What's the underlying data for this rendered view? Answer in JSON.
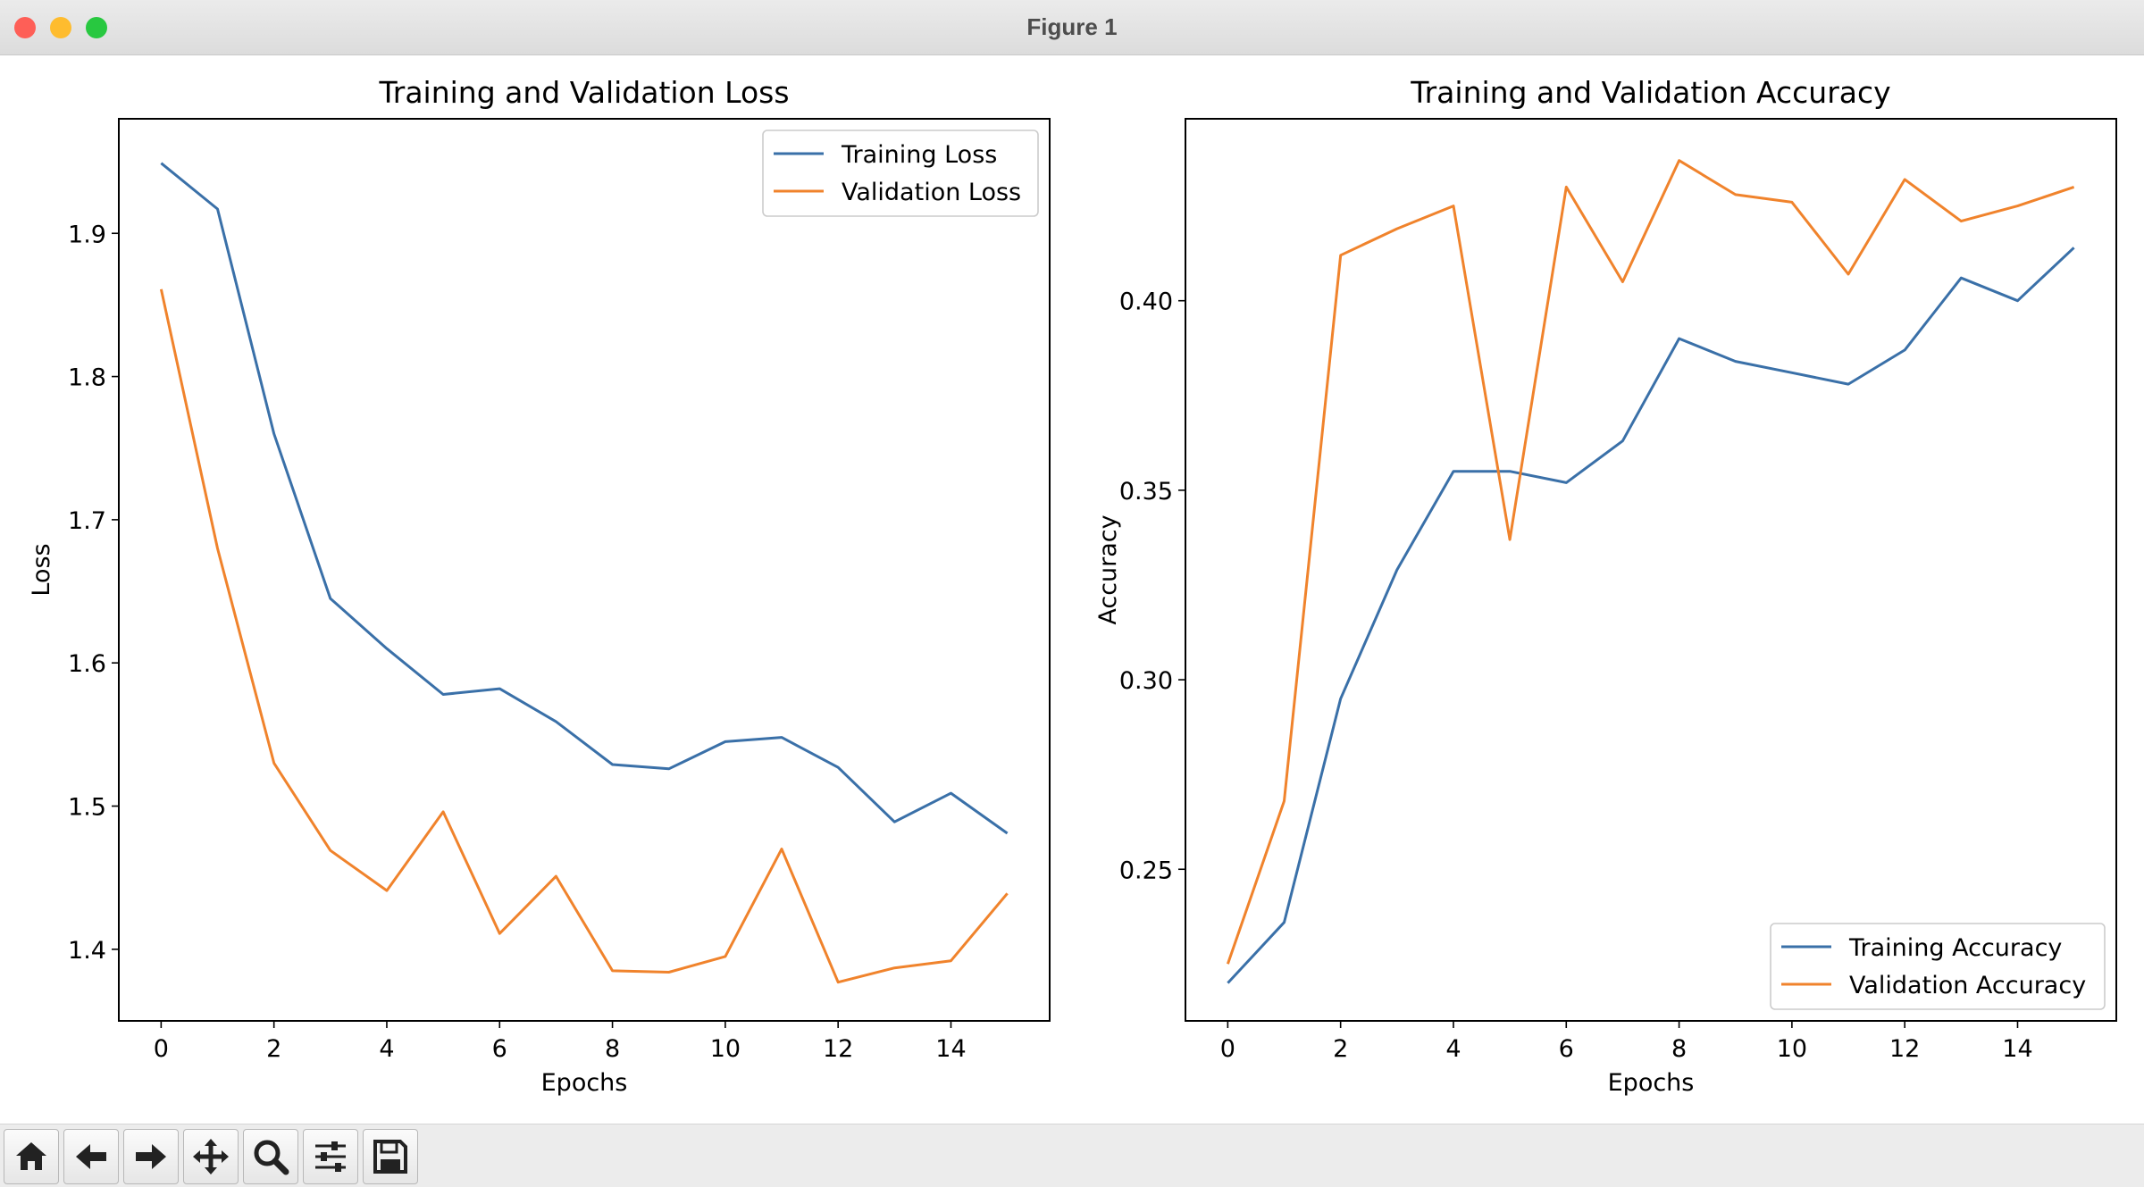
{
  "window": {
    "title": "Figure 1",
    "traffic_lights": {
      "close": "#fe5f57",
      "minimize": "#febc2e",
      "zoom": "#28c840"
    }
  },
  "toolbar": {
    "icons": [
      "home-icon",
      "back-arrow-icon",
      "forward-arrow-icon",
      "pan-move-icon",
      "zoom-magnifier-icon",
      "configure-subplots-icon",
      "save-floppy-icon"
    ]
  },
  "colors": {
    "series_1": "#3a70a8",
    "series_2": "#f0832c"
  },
  "chart_data": [
    {
      "type": "line",
      "title": "Training and Validation Loss",
      "xlabel": "Epochs",
      "ylabel": "Loss",
      "x": [
        0,
        1,
        2,
        3,
        4,
        5,
        6,
        7,
        8,
        9,
        10,
        11,
        12,
        13,
        14,
        15
      ],
      "xlim": [
        -0.75,
        15.75
      ],
      "ylim": [
        1.35,
        1.98
      ],
      "xticks": [
        0,
        2,
        4,
        6,
        8,
        10,
        12,
        14
      ],
      "xtick_labels": [
        "0",
        "2",
        "4",
        "6",
        "8",
        "10",
        "12",
        "14"
      ],
      "yticks": [
        1.4,
        1.5,
        1.6,
        1.7,
        1.8,
        1.9
      ],
      "ytick_labels": [
        "1.4",
        "1.5",
        "1.6",
        "1.7",
        "1.8",
        "1.9"
      ],
      "legend": "top-right",
      "grid": false,
      "series": [
        {
          "name": "Training Loss",
          "color": "#3a70a8",
          "values": [
            1.949,
            1.917,
            1.76,
            1.645,
            1.61,
            1.578,
            1.582,
            1.559,
            1.529,
            1.526,
            1.545,
            1.548,
            1.527,
            1.489,
            1.509,
            1.481
          ]
        },
        {
          "name": "Validation Loss",
          "color": "#f0832c",
          "values": [
            1.861,
            1.68,
            1.53,
            1.469,
            1.441,
            1.496,
            1.411,
            1.451,
            1.385,
            1.384,
            1.395,
            1.47,
            1.377,
            1.387,
            1.392,
            1.439
          ]
        }
      ]
    },
    {
      "type": "line",
      "title": "Training and Validation Accuracy",
      "xlabel": "Epochs",
      "ylabel": "Accuracy",
      "x": [
        0,
        1,
        2,
        3,
        4,
        5,
        6,
        7,
        8,
        9,
        10,
        11,
        12,
        13,
        14,
        15
      ],
      "xlim": [
        -0.75,
        15.75
      ],
      "ylim": [
        0.21,
        0.448
      ],
      "xticks": [
        0,
        2,
        4,
        6,
        8,
        10,
        12,
        14
      ],
      "xtick_labels": [
        "0",
        "2",
        "4",
        "6",
        "8",
        "10",
        "12",
        "14"
      ],
      "yticks": [
        0.25,
        0.3,
        0.35,
        0.4
      ],
      "ytick_labels": [
        "0.25",
        "0.30",
        "0.35",
        "0.40"
      ],
      "legend": "bottom-right",
      "grid": false,
      "series": [
        {
          "name": "Training Accuracy",
          "color": "#3a70a8",
          "values": [
            0.22,
            0.236,
            0.295,
            0.329,
            0.355,
            0.355,
            0.352,
            0.363,
            0.39,
            0.384,
            0.381,
            0.378,
            0.387,
            0.406,
            0.4,
            0.414
          ]
        },
        {
          "name": "Validation Accuracy",
          "color": "#f0832c",
          "values": [
            0.225,
            0.268,
            0.412,
            0.419,
            0.425,
            0.337,
            0.43,
            0.405,
            0.437,
            0.428,
            0.426,
            0.407,
            0.432,
            0.421,
            0.425,
            0.43
          ]
        }
      ]
    }
  ]
}
